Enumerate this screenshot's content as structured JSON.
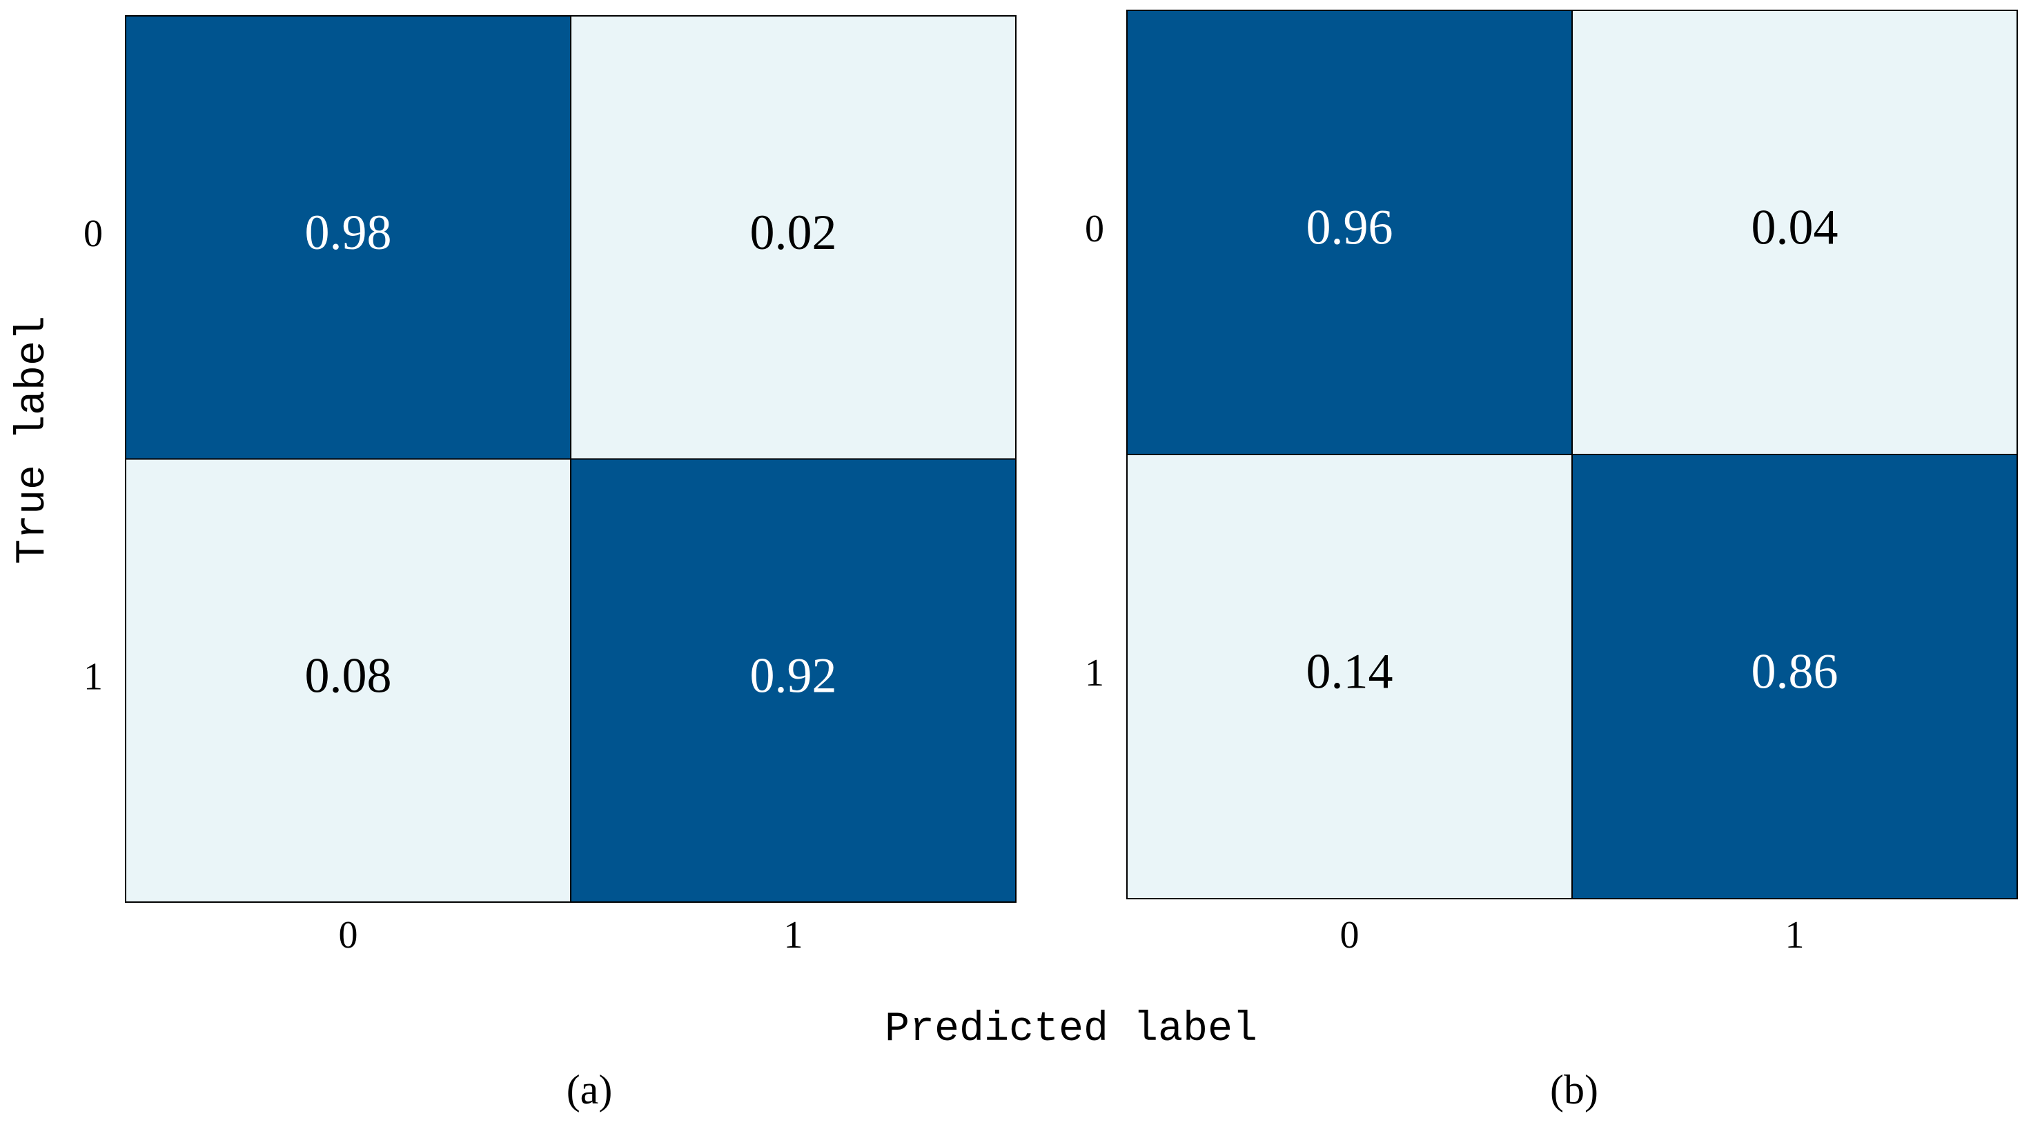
{
  "chart_data": [
    {
      "type": "heatmap",
      "caption": "(a)",
      "xlabel": "Predicted label",
      "ylabel": "True label",
      "x_categories": [
        "0",
        "1"
      ],
      "y_categories": [
        "0",
        "1"
      ],
      "values": [
        [
          0.98,
          0.02
        ],
        [
          0.08,
          0.92
        ]
      ],
      "cmap": [
        "#eaf5f8",
        "#00548f"
      ]
    },
    {
      "type": "heatmap",
      "caption": "(b)",
      "x_categories": [
        "0",
        "1"
      ],
      "y_categories": [
        "0",
        "1"
      ],
      "values": [
        [
          0.96,
          0.04
        ],
        [
          0.14,
          0.86
        ]
      ],
      "cmap": [
        "#eaf5f8",
        "#00548f"
      ]
    }
  ]
}
